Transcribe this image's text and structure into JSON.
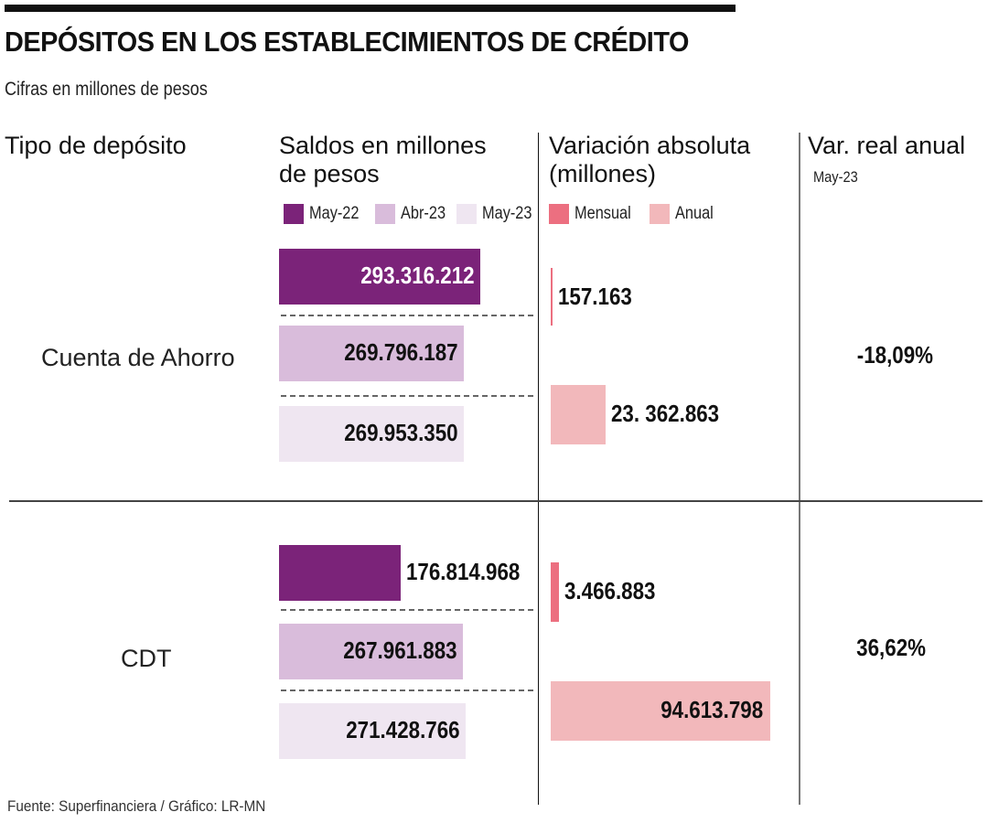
{
  "header": {
    "title": "DEPÓSITOS EN LOS ESTABLECIMIENTOS DE CRÉDITO",
    "subtitle": "Cifras en millones de pesos"
  },
  "columns": {
    "tipo": "Tipo de depósito",
    "saldos_line1": "Saldos en millones",
    "saldos_line2": "de pesos",
    "variacion_line1": "Variación absoluta",
    "variacion_line2": "(millones)",
    "var_real": "Var. real anual",
    "var_real_sub": "May-23"
  },
  "legend": {
    "saldos": [
      {
        "label": "May-22",
        "color": "#7b2379"
      },
      {
        "label": "Abr-23",
        "color": "#d9bcdb"
      },
      {
        "label": "May-23",
        "color": "#efe6f1"
      }
    ],
    "variacion": [
      {
        "label": "Mensual",
        "color": "#ec6f80"
      },
      {
        "label": "Anual",
        "color": "#f2b8bb"
      }
    ]
  },
  "source": "Fuente: Superfinanciera / Gráfico: LR-MN",
  "chart_data": {
    "type": "bar",
    "title": "DEPÓSITOS EN LOS ESTABLECIMIENTOS DE CRÉDITO",
    "subtitle": "Cifras en millones de pesos",
    "categories": [
      "Cuenta de Ahorro",
      "CDT"
    ],
    "saldos": {
      "label": "Saldos en millones de pesos",
      "series": [
        {
          "name": "May-22",
          "values": [
            293316212,
            176814968
          ],
          "labels": [
            "293.316.212",
            "176.814.968"
          ],
          "color": "#7b2379"
        },
        {
          "name": "Abr-23",
          "values": [
            269796187,
            267961883
          ],
          "labels": [
            "269.796.187",
            "267.961.883"
          ],
          "color": "#d9bcdb"
        },
        {
          "name": "May-23",
          "values": [
            269953350,
            271428766
          ],
          "labels": [
            "269.953.350",
            "271.428.766"
          ],
          "color": "#efe6f1"
        }
      ]
    },
    "variacion": {
      "label": "Variación absoluta (millones)",
      "series": [
        {
          "name": "Mensual",
          "values": [
            157163,
            3466883
          ],
          "labels": [
            "157.163",
            "3.466.883"
          ],
          "color": "#ec6f80"
        },
        {
          "name": "Anual",
          "values": [
            23362863,
            94613798
          ],
          "labels": [
            "23. 362.863",
            "94.613.798"
          ],
          "color": "#f2b8bb"
        }
      ]
    },
    "var_real_anual": {
      "label": "Var. real anual May-23",
      "values": [
        -18.09,
        36.62
      ],
      "labels": [
        "-18,09%",
        "36,62%"
      ]
    }
  }
}
